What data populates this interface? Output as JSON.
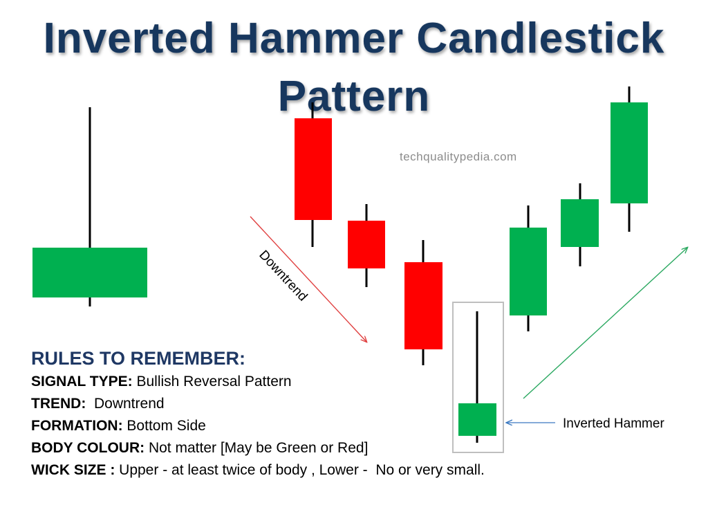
{
  "title": "Inverted Hammer Candlestick Pattern",
  "watermark": "techqualitypedia.com",
  "downtrend_label": "Downtrend",
  "pattern_label": "Inverted Hammer",
  "colors": {
    "bullish": "#00b050",
    "bearish": "#ff0000",
    "title": "#17375e",
    "heading": "#1f3864",
    "downtrend_arrow": "#e04040",
    "uptrend_arrow": "#2aa860",
    "pointer_arrow": "#3a78c0",
    "highlight_box": "#bfbfbf"
  },
  "rules": {
    "heading": "RULES TO REMEMBER:",
    "items": [
      {
        "label": "SIGNAL TYPE:",
        "value": " Bullish Reversal Pattern"
      },
      {
        "label": "TREND:",
        "value": "  Downtrend"
      },
      {
        "label": "FORMATION:",
        "value": " Bottom Side"
      },
      {
        "label": "BODY COLOUR:",
        "value": " Not matter [May be Green or Red]"
      },
      {
        "label": "WICK SIZE :",
        "value": " Upper - at least twice of body , Lower -  No or very small."
      }
    ]
  }
}
